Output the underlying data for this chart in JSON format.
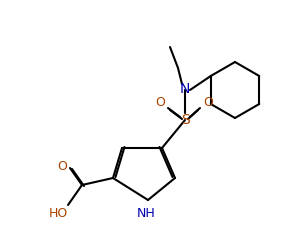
{
  "background_color": "#ffffff",
  "bond_color": "#000000",
  "line_width": 1.5,
  "atom_colors": {
    "C": "#000000",
    "N": "#0000aa",
    "O": "#aa4400",
    "S": "#aa4400",
    "H": "#000000"
  },
  "font_size": 9
}
